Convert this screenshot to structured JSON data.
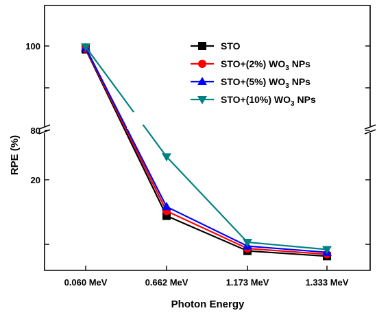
{
  "chart_data": {
    "type": "line",
    "title": "",
    "xlabel": "Photon Energy",
    "ylabel": "RPE (%)",
    "categories": [
      "0.060 MeV",
      "0.662 MeV",
      "1.173 MeV",
      "1.333 MeV"
    ],
    "y_axis_break": {
      "lower_range": [
        0,
        30
      ],
      "upper_range": [
        80,
        110
      ]
    },
    "y_ticks_labeled": [
      "100",
      "80",
      "20"
    ],
    "grid": false,
    "legend_placement": "top-right",
    "series": [
      {
        "name": "STO",
        "label_main": "STO",
        "label_sub": "",
        "label_tail": "",
        "color": "#000000",
        "marker": "square",
        "values": [
          99.2,
          12.5,
          5.2,
          4.1
        ]
      },
      {
        "name": "STO+(2%) WO3 NPs",
        "label_main": "STO+(2%) WO",
        "label_sub": "3",
        "label_tail": " NPs",
        "color": "#ff0000",
        "marker": "circle",
        "values": [
          99.4,
          13.5,
          5.7,
          4.5
        ]
      },
      {
        "name": "STO+(5%) WO3 NPs",
        "label_main": "STO+(5%) WO",
        "label_sub": "3",
        "label_tail": " NPs",
        "color": "#0000ff",
        "marker": "triangle-up",
        "values": [
          99.6,
          14.4,
          6.2,
          4.9
        ]
      },
      {
        "name": "STO+(10%) WO3 NPs",
        "label_main": "STO+(10%) WO",
        "label_sub": "3",
        "label_tail": " NPs",
        "color": "#008080",
        "marker": "triangle-down",
        "values": [
          99.8,
          24.8,
          7.0,
          5.5
        ]
      }
    ]
  }
}
